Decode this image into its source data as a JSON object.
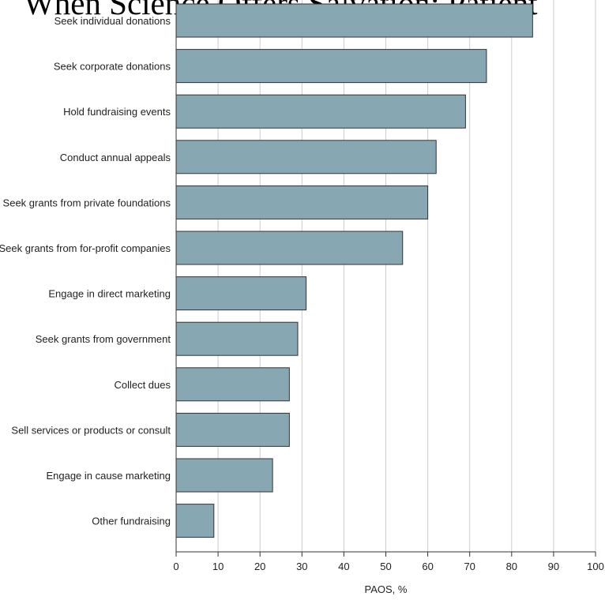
{
  "background_title": "When Science Offers Salvation: Patient",
  "chart_data": {
    "type": "bar",
    "orientation": "horizontal",
    "categories": [
      "Seek individual donations",
      "Seek corporate donations",
      "Hold fundraising events",
      "Conduct annual appeals",
      "Seek grants from private foundations",
      "Seek grants from for-profit companies",
      "Engage in direct marketing",
      "Seek grants from government",
      "Collect dues",
      "Sell services or products or consult",
      "Engage in cause marketing",
      "Other fundraising"
    ],
    "values": [
      85,
      74,
      69,
      62,
      60,
      54,
      31,
      29,
      27,
      27,
      23,
      9
    ],
    "xlabel": "PAOS, %",
    "ylabel": "",
    "xlim": [
      0,
      100
    ],
    "xticks": [
      0,
      10,
      20,
      30,
      40,
      50,
      60,
      70,
      80,
      90,
      100
    ],
    "grid": true,
    "colors": {
      "bar": "#87a7b3",
      "bar_stroke": "#333333",
      "grid": "#cccccc"
    }
  }
}
